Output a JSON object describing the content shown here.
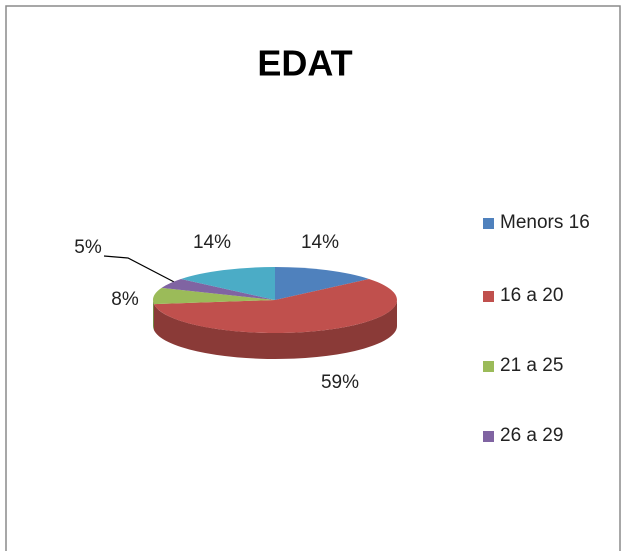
{
  "chart_data": {
    "type": "pie",
    "title": "EDAT",
    "categories": [
      "Menors 16",
      "16 a 20",
      "21 a 25",
      "26 a 29",
      null
    ],
    "values": [
      14,
      59,
      8,
      5,
      14
    ],
    "value_labels": [
      "14%",
      "59%",
      "8%",
      "5%",
      "14%"
    ],
    "colors": [
      "#4f81bd",
      "#c0504d",
      "#9bbb59",
      "#8064a2",
      "#4bacc6"
    ],
    "legend": "right"
  }
}
